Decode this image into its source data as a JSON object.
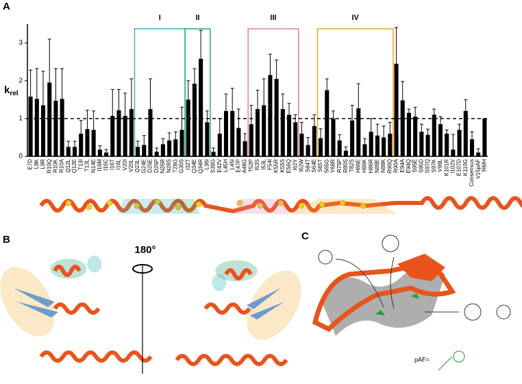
{
  "chart_data": {
    "type": "bar",
    "panel": "A",
    "ylabel": {
      "main": "k",
      "sub": "rel"
    },
    "categories": [
      "E7D",
      "L8K",
      "L9R",
      "R10Q",
      "R10K",
      "R10A",
      "Q12L",
      "Q12E",
      "T13I",
      "T13L",
      "N14E",
      "I16M",
      "I16C",
      "I16T",
      "I16L",
      "V20I",
      "V20L",
      "Q23L",
      "G24E",
      "D25E",
      "D25P",
      "N26R",
      "N26S",
      "T28G",
      "G30S",
      "I32T",
      "Q34E",
      "Q34R",
      "L36I",
      "S39G",
      "E42V",
      "L45H",
      "L45I",
      "E47P",
      "A48G",
      "T52P",
      "I53S",
      "I53L",
      "F54I",
      "K55R",
      "K55S",
      "E56Q",
      "I62Y",
      "I62W",
      "S64T",
      "S64E",
      "S65T",
      "S65G",
      "Y68R",
      "R75P",
      "R80S",
      "T82S",
      "H86E",
      "H86K",
      "H86R",
      "N88E",
      "N88K",
      "R90Q",
      "R90A",
      "E94A",
      "E94Q",
      "S95E",
      "S95D",
      "S97Q",
      "S97K",
      "V99L",
      "K101R",
      "I102V",
      "E107D",
      "K110G",
      "Consensus",
      "V15pAF",
      "RMH"
    ],
    "values": [
      1.58,
      1.52,
      1.35,
      1.95,
      1.47,
      1.52,
      0.25,
      0.25,
      0.6,
      0.72,
      0.7,
      0.18,
      0.1,
      1.07,
      1.22,
      1.07,
      1.25,
      0.25,
      0.3,
      1.25,
      0.12,
      0.32,
      0.42,
      0.45,
      0.7,
      1.5,
      1.92,
      2.58,
      0.9,
      0.12,
      0.6,
      1.2,
      1.2,
      0.75,
      0.4,
      0.85,
      1.25,
      1.35,
      2.15,
      2.05,
      1.25,
      1.1,
      0.9,
      0.6,
      0.3,
      0.8,
      0.48,
      1.75,
      1.0,
      0.42,
      0.15,
      0.95,
      1.27,
      0.32,
      0.65,
      0.55,
      0.5,
      0.6,
      2.45,
      1.48,
      1.15,
      1.05,
      0.65,
      0.57,
      1.1,
      0.85,
      0.6,
      0.18,
      0.7,
      1.2,
      0.45,
      0.1,
      1.0
    ],
    "errors": [
      0.7,
      0.8,
      0.9,
      1.15,
      0.85,
      0.8,
      0.15,
      0.15,
      0.35,
      0.5,
      0.5,
      0.1,
      0.08,
      0.7,
      0.55,
      0.6,
      0.8,
      0.15,
      0.25,
      0.8,
      0.1,
      0.15,
      0.2,
      0.2,
      0.6,
      0.5,
      0.4,
      0.75,
      0.3,
      0.1,
      0.4,
      0.45,
      0.6,
      0.5,
      0.2,
      0.5,
      0.5,
      0.7,
      0.55,
      0.5,
      0.4,
      0.3,
      0.2,
      0.3,
      0.2,
      0.3,
      0.25,
      0.3,
      0.2,
      0.15,
      0.1,
      0.4,
      0.65,
      0.15,
      0.35,
      0.3,
      0.3,
      0.3,
      0.95,
      0.5,
      0.1,
      0.25,
      0.2,
      0.15,
      0.15,
      0.2,
      0.1,
      0.4,
      0.15,
      0.3,
      0.2,
      0.1,
      null
    ],
    "color": "#000000",
    "ylim": [
      0,
      3.5
    ],
    "yticks": [
      0,
      1,
      2,
      3
    ],
    "reference_line": 1,
    "regions": [
      {
        "label": "I",
        "color": "#35b4b4"
      },
      {
        "label": "II",
        "color": "#2aa57a"
      },
      {
        "label": "III",
        "color": "#e27aab"
      },
      {
        "label": "IV",
        "color": "#f0a522"
      }
    ]
  },
  "panel_b": {
    "label": "B",
    "rotation": "180°"
  },
  "panel_c": {
    "label": "C",
    "paf_label": "pAF="
  }
}
